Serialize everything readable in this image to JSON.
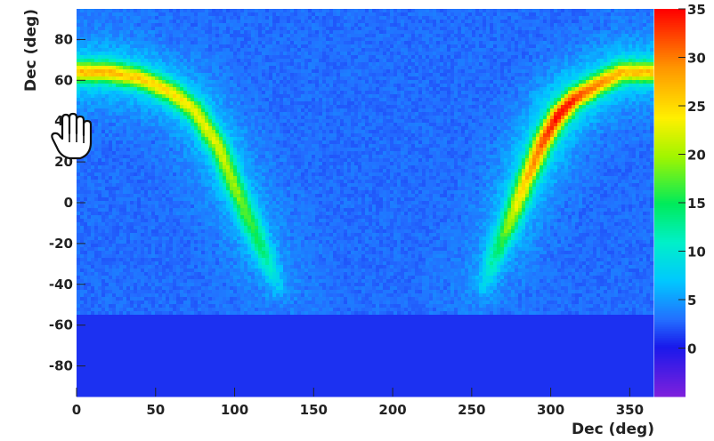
{
  "chart_data": {
    "type": "heatmap",
    "title": "",
    "xlabel": "Dec (deg)",
    "ylabel": "Dec (deg)",
    "xlim": [
      0,
      365
    ],
    "ylim": [
      -95,
      95
    ],
    "xticks": [
      "0",
      "50",
      "100",
      "150",
      "200",
      "250",
      "300",
      "350"
    ],
    "xtick_values": [
      0,
      50,
      100,
      150,
      200,
      250,
      300,
      350
    ],
    "yticks": [
      "80",
      "60",
      "40",
      "20",
      "0",
      "-20",
      "-40",
      "-60",
      "-80"
    ],
    "ytick_values": [
      80,
      60,
      40,
      20,
      0,
      -20,
      -40,
      -60,
      -80
    ],
    "colorbar": {
      "range": [
        -5,
        35
      ],
      "ticks": [
        "35",
        "30",
        "25",
        "20",
        "15",
        "10",
        "5",
        "0"
      ],
      "tick_values": [
        35,
        30,
        25,
        20,
        15,
        10,
        5,
        0
      ]
    },
    "background_level": 3,
    "coverage_limit_dec": -55,
    "below_limit_level": 1,
    "bands": [
      {
        "name": "left-arc",
        "points": [
          [
            0,
            64
          ],
          [
            20,
            64
          ],
          [
            40,
            61
          ],
          [
            60,
            54
          ],
          [
            75,
            45
          ],
          [
            90,
            27
          ],
          [
            100,
            8
          ],
          [
            110,
            -10
          ],
          [
            120,
            -28
          ],
          [
            127,
            -41
          ]
        ],
        "peak_levels": [
          22,
          22,
          21,
          20,
          19,
          18,
          16,
          14,
          10,
          6
        ]
      },
      {
        "name": "right-arc",
        "points": [
          [
            365,
            64
          ],
          [
            345,
            64
          ],
          [
            330,
            58
          ],
          [
            315,
            51
          ],
          [
            305,
            43
          ],
          [
            295,
            30
          ],
          [
            285,
            12
          ],
          [
            275,
            -8
          ],
          [
            265,
            -26
          ],
          [
            258,
            -41
          ]
        ],
        "peak_levels": [
          22,
          22,
          24,
          27,
          29,
          26,
          22,
          17,
          11,
          6
        ]
      }
    ]
  },
  "colors": {
    "frame": "#ffffff",
    "axis_text": "#222222"
  },
  "overlay_icons": [
    "hand-cursor-icon"
  ]
}
